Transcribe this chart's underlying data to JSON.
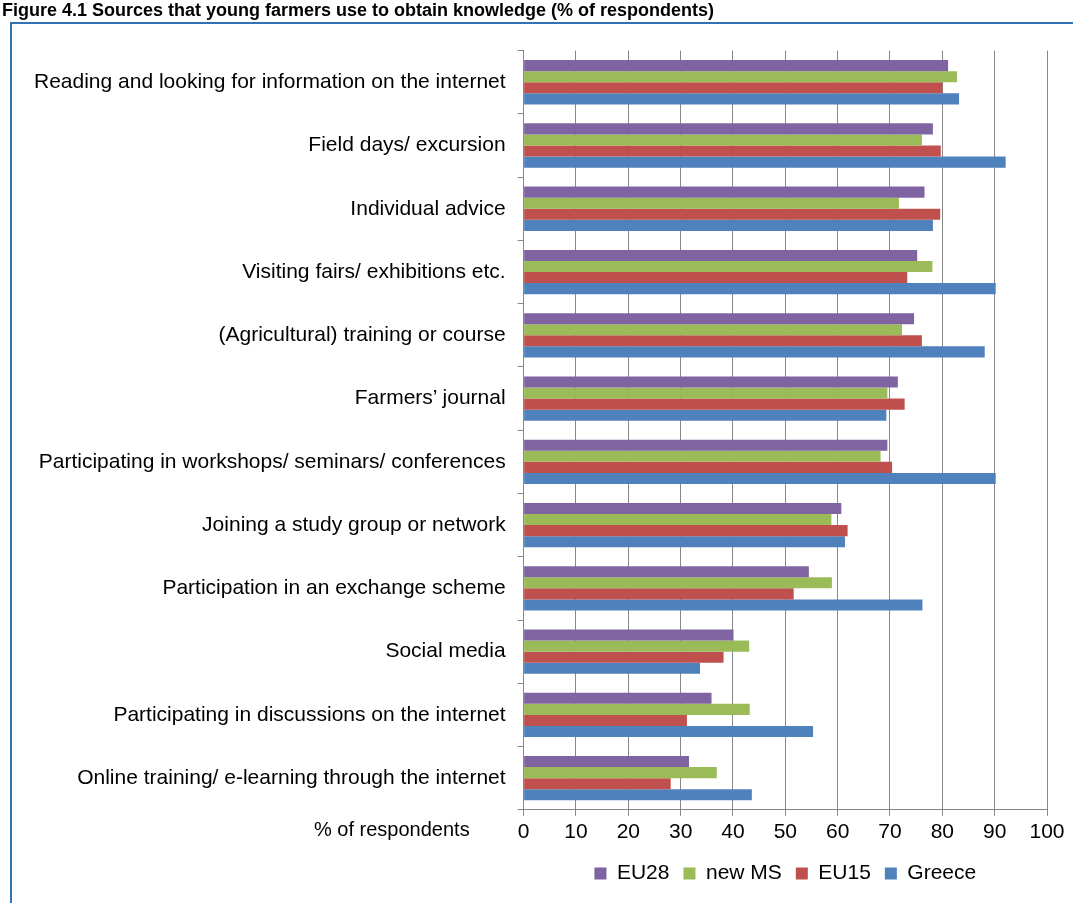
{
  "chart_data": {
    "type": "bar",
    "orientation": "horizontal",
    "title": "Figure 4.1 Sources that young farmers use to obtain knowledge (% of respondents)",
    "xlabel": "% of respondents",
    "categories": [
      "Reading and looking for information on the internet",
      "Field days/ excursion",
      "Individual advice",
      "Visiting fairs/ exhibitions etc.",
      "(Agricultural) training or course",
      "Farmers’ journal",
      "Participating in workshops/ seminars/ conferences",
      "Joining a study group or network",
      "Participation in an exchange scheme",
      "Social media",
      "Participating in discussions on the internet",
      "Online training/ e-learning through the internet"
    ],
    "series": [
      {
        "name": "EU28",
        "color": "#8064a2",
        "values": [
          81.1,
          78.2,
          76.6,
          75.2,
          74.6,
          71.5,
          69.5,
          60.7,
          54.5,
          40.1,
          35.9,
          31.6
        ]
      },
      {
        "name": "new MS",
        "color": "#9bbb59",
        "values": [
          82.8,
          76.1,
          71.7,
          78.1,
          72.3,
          69.5,
          68.2,
          58.8,
          58.9,
          43.1,
          43.2,
          36.9
        ]
      },
      {
        "name": "EU15",
        "color": "#c0504d",
        "values": [
          80.0,
          79.7,
          79.6,
          73.3,
          76.1,
          72.8,
          70.4,
          61.9,
          51.6,
          38.2,
          31.2,
          28.1
        ]
      },
      {
        "name": "Greece",
        "color": "#4f81bd",
        "values": [
          83.2,
          92.1,
          78.2,
          90.2,
          88.1,
          69.3,
          90.2,
          61.4,
          76.2,
          33.7,
          55.3,
          43.6
        ]
      }
    ],
    "xlim": [
      0,
      100
    ],
    "xticks": [
      0,
      10,
      20,
      30,
      40,
      50,
      60,
      70,
      80,
      90,
      100
    ],
    "grid": "x",
    "legend": "bottom"
  }
}
